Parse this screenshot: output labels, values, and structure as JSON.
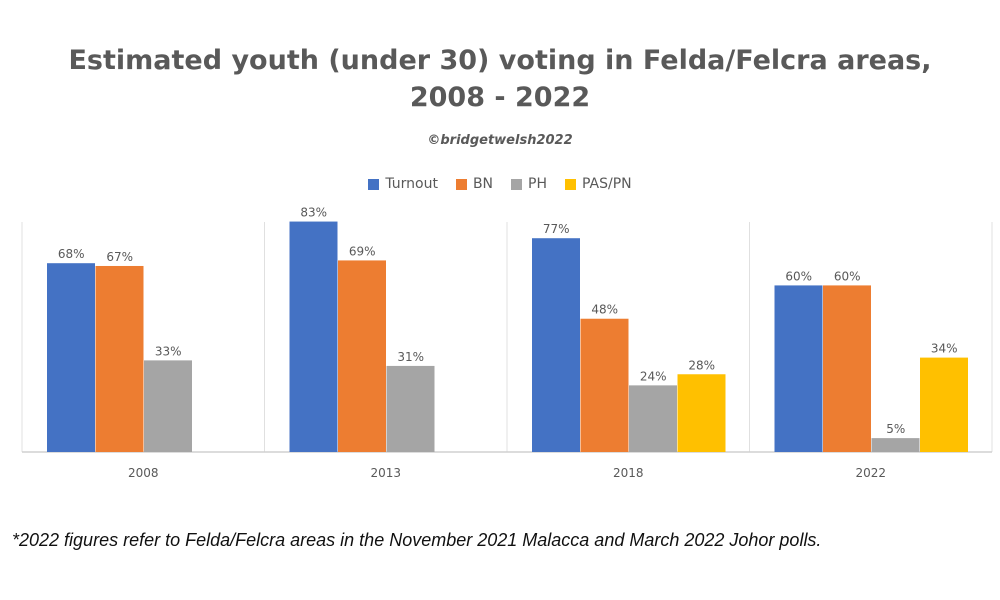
{
  "chart_data": {
    "type": "bar",
    "title": "Estimated youth (under 30) voting in Felda/Felcra areas, 2008 - 2022",
    "title_lines": [
      "Estimated youth (under 30) voting in Felda/Felcra areas,",
      "2008 - 2022"
    ],
    "subtitle": "©bridgetwelsh2022",
    "categories": [
      "2008",
      "2013",
      "2018",
      "2022"
    ],
    "series": [
      {
        "name": "Turnout",
        "color": "#4472C4",
        "values": [
          68,
          83,
          77,
          60
        ]
      },
      {
        "name": "BN",
        "color": "#ED7D31",
        "values": [
          67,
          69,
          48,
          60
        ]
      },
      {
        "name": "PH",
        "color": "#A5A5A5",
        "values": [
          33,
          31,
          24,
          5
        ]
      },
      {
        "name": "PAS/PN",
        "color": "#FFC000",
        "values": [
          null,
          null,
          28,
          34
        ]
      }
    ],
    "value_suffix": "%",
    "ylim": [
      0,
      85
    ],
    "grid": false,
    "legend_position": "top"
  },
  "footnote": "*2022 figures refer to Felda/Felcra areas in the November 2021 Malacca and March 2022 Johor polls."
}
